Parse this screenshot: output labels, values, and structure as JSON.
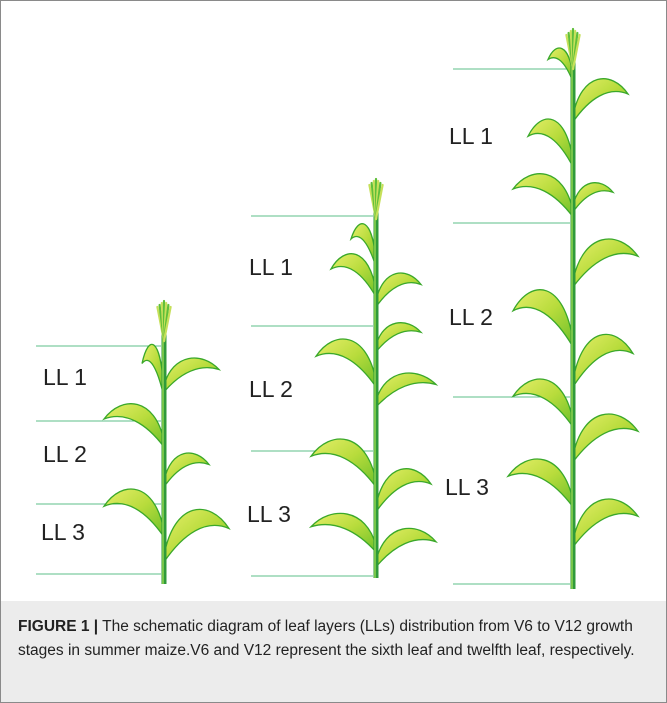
{
  "figure": {
    "plants": [
      {
        "labels": [
          "LL 1",
          "LL 2",
          "LL 3"
        ]
      },
      {
        "labels": [
          "LL 1",
          "LL 2",
          "LL 3"
        ]
      },
      {
        "labels": [
          "LL 1",
          "LL 2",
          "LL 3"
        ]
      }
    ],
    "caption": {
      "label": "FIGURE 1 |",
      "text": "The schematic diagram of leaf layers (LLs) distribution from V6 to V12 growth stages in summer maize.V6 and V12 represent the sixth leaf and twelfth leaf, respectively."
    }
  }
}
